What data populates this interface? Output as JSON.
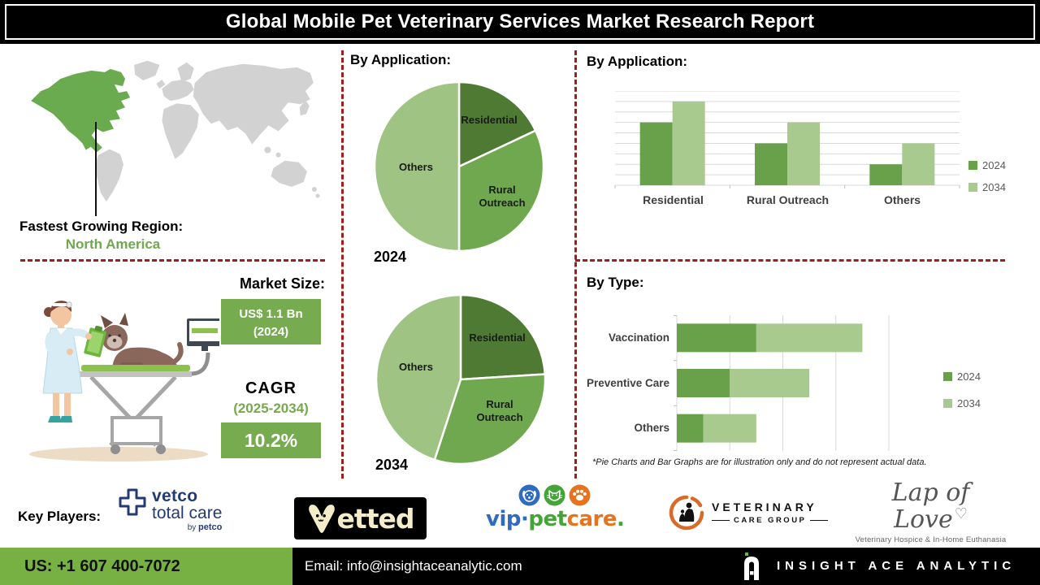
{
  "title_bar": {
    "title": "Global Mobile Pet Veterinary Services Market Research Report"
  },
  "region": {
    "label": "Fastest Growing Region:",
    "value": "North America"
  },
  "market": {
    "heading": "Market Size:",
    "size_value": "US$ 1.1 Bn",
    "size_year": "(2024)",
    "cagr_label": "CAGR",
    "cagr_period": "(2025-2034)",
    "cagr_value": "10.2%"
  },
  "disclaimer": "*Pie Charts and Bar Graphs are for illustration only and do not represent actual data.",
  "key_players": {
    "label": "Key Players:",
    "vetco": {
      "name": "Vetco Total Care by Petco",
      "line1": "vetco",
      "line2": "total care",
      "by_label": "by ",
      "by_brand": "petco"
    },
    "vetted": {
      "name": "Vetted",
      "text_after_icon": "etted"
    },
    "vip_petcare": {
      "name": "VIP Petcare",
      "part1": "vip",
      "separator": "·",
      "part2": "pet",
      "part3": "care",
      "period": "."
    },
    "veterinary_care_group": {
      "name": "Veterinary Care Group",
      "line1": "VETERINARY",
      "line2": "CARE GROUP"
    },
    "lap_of_love": {
      "name": "Lap of Love",
      "script": "Lap of Love",
      "heart": "♡",
      "subtitle": "Veterinary Hospice & In-Home Euthanasia"
    }
  },
  "footer": {
    "phone": "US: +1 607 400-7072",
    "email": "Email: info@insightaceanalytic.com",
    "brand": "INSIGHT ACE ANALYTIC"
  },
  "colors": {
    "accent_green": "#76ab4f",
    "footer_green": "#77b043",
    "map_green": "#6aab50",
    "map_gray": "#d2d2d2",
    "dashed_red": "#a01e1e",
    "pie_dark": "#4e7a33",
    "pie_mid": "#70a84f",
    "pie_light": "#9fc383",
    "bar_2024": "#69a04a",
    "bar_2034": "#a9ca8e",
    "navy": "#233b73"
  },
  "chart_data": [
    {
      "id": "pie-2024",
      "type": "pie",
      "title": "By Application:",
      "year_label": "2024",
      "labels": [
        "Residential",
        "Rural Outreach",
        "Others"
      ],
      "values": [
        18,
        32,
        50
      ],
      "unit": "%",
      "colors": [
        "#4e7a33",
        "#70a84f",
        "#9fc383"
      ],
      "note": "illustrative only"
    },
    {
      "id": "pie-2034",
      "type": "pie",
      "title": "By Application:",
      "year_label": "2034",
      "labels": [
        "Residential",
        "Rural Outreach",
        "Others"
      ],
      "values": [
        24,
        31,
        45
      ],
      "unit": "%",
      "colors": [
        "#4e7a33",
        "#70a84f",
        "#9fc383"
      ],
      "note": "illustrative only"
    },
    {
      "id": "bar-application",
      "type": "bar",
      "title": "By Application:",
      "categories": [
        "Residential",
        "Rural Outreach",
        "Others"
      ],
      "series": [
        {
          "name": "2024",
          "values": [
            6,
            4,
            2
          ],
          "color": "#69a04a"
        },
        {
          "name": "2034",
          "values": [
            8,
            6,
            4
          ],
          "color": "#a9ca8e"
        }
      ],
      "ylim": [
        0,
        9
      ],
      "grid": true,
      "legend_position": "right",
      "note": "illustrative only"
    },
    {
      "id": "bar-type",
      "type": "stacked-hbar",
      "title": "By Type:",
      "categories": [
        "Vaccination",
        "Preventive Care",
        "Others"
      ],
      "series": [
        {
          "name": "2024",
          "values": [
            1.5,
            1.0,
            0.5
          ],
          "color": "#69a04a"
        },
        {
          "name": "2034",
          "values": [
            2.0,
            1.5,
            1.0
          ],
          "color": "#a9ca8e"
        }
      ],
      "xlim": [
        0,
        4
      ],
      "grid": true,
      "legend_position": "right",
      "note": "illustrative only"
    }
  ]
}
